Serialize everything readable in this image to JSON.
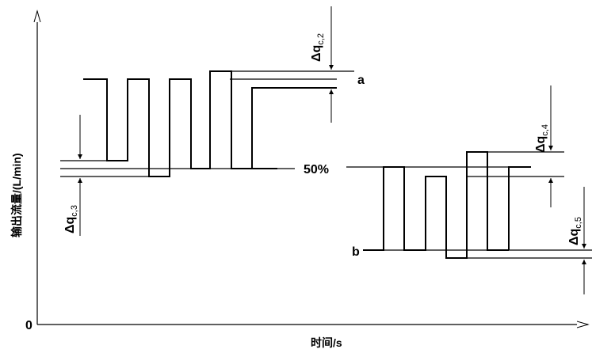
{
  "diagram": {
    "y_axis_label": "输出流量/(L/min)",
    "x_axis_label": "时间/s",
    "origin_label": "0",
    "level_50_label": "50%",
    "level_a_label": "a",
    "level_b_label": "b",
    "dq_symbol": "Δq",
    "dq_subscripts": [
      "c,2",
      "c,3",
      "c,4",
      "c,5"
    ]
  },
  "colors": {
    "line": "#000000",
    "background": "#ffffff"
  }
}
